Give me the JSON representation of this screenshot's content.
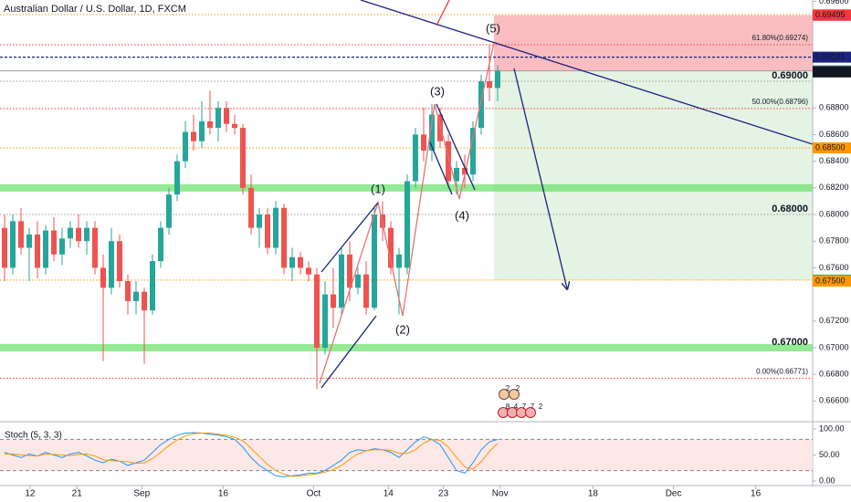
{
  "chart_data": {
    "type": "candlestick",
    "title": "Australian Dollar / U.S. Dollar, 1D, FXCM",
    "xlim": [
      -0.556,
      98.333
    ],
    "xticks": [
      {
        "value": 3.1,
        "label": "12"
      },
      {
        "value": 8.8,
        "label": "21"
      },
      {
        "value": 16.7,
        "label": "Sep"
      },
      {
        "value": 26.6,
        "label": "16"
      },
      {
        "value": 37.6,
        "label": "Oct"
      },
      {
        "value": 46.7,
        "label": "14"
      },
      {
        "value": 53.4,
        "label": "23"
      },
      {
        "value": 60.3,
        "label": "Nov"
      },
      {
        "value": 71.6,
        "label": "18"
      },
      {
        "value": 81.4,
        "label": "Dec"
      },
      {
        "value": 91.4,
        "label": "16"
      }
    ],
    "ylim": [
      0.66445,
      0.6961
    ],
    "yticks": [
      {
        "value": 0.696,
        "label": "0.69600"
      },
      {
        "value": 0.688,
        "label": "0.68800"
      },
      {
        "value": 0.686,
        "label": "0.68600"
      },
      {
        "value": 0.684,
        "label": "0.68400"
      },
      {
        "value": 0.682,
        "label": "0.68200"
      },
      {
        "value": 0.68,
        "label": "0.68000"
      },
      {
        "value": 0.678,
        "label": "0.67800"
      },
      {
        "value": 0.676,
        "label": "0.67600"
      },
      {
        "value": 0.672,
        "label": "0.67200"
      },
      {
        "value": 0.67,
        "label": "0.67000"
      },
      {
        "value": 0.668,
        "label": "0.66800"
      },
      {
        "value": 0.666,
        "label": "0.66600"
      }
    ],
    "up_color": "#26a69a",
    "down_color": "#ef5350",
    "open": [
      0.679,
      0.676,
      0.6795,
      0.6775,
      0.6785,
      0.676,
      0.6788,
      0.677,
      0.6782,
      0.679,
      0.678,
      0.679,
      0.676,
      0.6745,
      0.678,
      0.675,
      0.6735,
      0.6742,
      0.6728,
      0.6765,
      0.679,
      0.6815,
      0.684,
      0.6862,
      0.6855,
      0.687,
      0.6865,
      0.688,
      0.6868,
      0.6865,
      0.682,
      0.679,
      0.68,
      0.6775,
      0.6805,
      0.676,
      0.6768,
      0.676,
      0.6755,
      0.67,
      0.674,
      0.673,
      0.677,
      0.6745,
      0.6755,
      0.673,
      0.68,
      0.679,
      0.676,
      0.676,
      0.6825,
      0.686,
      0.6848,
      0.6875,
      0.6855,
      0.6825,
      0.6835,
      0.683,
      0.6865,
      0.69,
      0.6895
    ],
    "high": [
      0.68,
      0.68,
      0.6805,
      0.679,
      0.6795,
      0.6792,
      0.6798,
      0.679,
      0.6795,
      0.68,
      0.6795,
      0.6795,
      0.677,
      0.679,
      0.6785,
      0.6755,
      0.675,
      0.6745,
      0.677,
      0.6795,
      0.682,
      0.6845,
      0.687,
      0.6875,
      0.6885,
      0.6893,
      0.6885,
      0.6885,
      0.6875,
      0.6868,
      0.683,
      0.6805,
      0.6805,
      0.681,
      0.6808,
      0.6775,
      0.6772,
      0.6765,
      0.676,
      0.675,
      0.676,
      0.6775,
      0.678,
      0.676,
      0.6765,
      0.6805,
      0.681,
      0.6795,
      0.6775,
      0.683,
      0.6865,
      0.688,
      0.6883,
      0.688,
      0.686,
      0.684,
      0.6845,
      0.687,
      0.6905,
      0.6927,
      0.6912
    ],
    "low": [
      0.675,
      0.6755,
      0.677,
      0.675,
      0.6752,
      0.6755,
      0.6765,
      0.6762,
      0.6775,
      0.6775,
      0.677,
      0.6755,
      0.669,
      0.674,
      0.6745,
      0.6725,
      0.6725,
      0.6688,
      0.6725,
      0.676,
      0.6785,
      0.681,
      0.6835,
      0.6848,
      0.685,
      0.686,
      0.6855,
      0.6862,
      0.686,
      0.6815,
      0.6785,
      0.6775,
      0.677,
      0.677,
      0.6755,
      0.675,
      0.6755,
      0.675,
      0.6669,
      0.6695,
      0.6715,
      0.6725,
      0.6735,
      0.674,
      0.6725,
      0.6728,
      0.678,
      0.6755,
      0.6725,
      0.6755,
      0.682,
      0.684,
      0.684,
      0.685,
      0.682,
      0.6815,
      0.682,
      0.6825,
      0.686,
      0.6885,
      0.6885
    ],
    "close": [
      0.676,
      0.6795,
      0.6775,
      0.6785,
      0.676,
      0.6788,
      0.677,
      0.6782,
      0.679,
      0.678,
      0.679,
      0.676,
      0.6745,
      0.678,
      0.675,
      0.6735,
      0.6742,
      0.6728,
      0.6765,
      0.679,
      0.6815,
      0.684,
      0.6862,
      0.6855,
      0.687,
      0.6865,
      0.688,
      0.6868,
      0.6865,
      0.682,
      0.679,
      0.68,
      0.6775,
      0.6805,
      0.676,
      0.6768,
      0.676,
      0.6755,
      0.67,
      0.674,
      0.673,
      0.677,
      0.6745,
      0.6755,
      0.673,
      0.68,
      0.679,
      0.676,
      0.677,
      0.6825,
      0.686,
      0.6848,
      0.6875,
      0.6855,
      0.6825,
      0.6835,
      0.683,
      0.6865,
      0.69,
      0.6895,
      0.6908
    ],
    "zones": [
      {
        "from": 0.69078,
        "to": 0.69495,
        "color": "#f7a1a6"
      },
      {
        "from": 0.67508,
        "to": 0.69078,
        "color": "#d9eed9"
      }
    ],
    "lines": [
      {
        "value": 0.695,
        "color": "#ff9800",
        "style": "dotted"
      },
      {
        "value": 0.69274,
        "color": "#e53935",
        "style": "dotted",
        "label": "61.80%(0.69274)"
      },
      {
        "value": 0.69181,
        "color": "#1a237e",
        "style": "dashed"
      },
      {
        "value": 0.69078,
        "color": "#9e9e9e",
        "style": "solid"
      },
      {
        "value": 0.69,
        "color": "#9e9e9e",
        "style": "dotted",
        "label": "0.69000",
        "bold": true
      },
      {
        "value": 0.68796,
        "color": "#e53935",
        "style": "dotted",
        "label": "50.00%(0.68796)"
      },
      {
        "value": 0.685,
        "color": "#ff9800",
        "style": "dotted"
      },
      {
        "value": 0.682,
        "color": "#66e066",
        "style": "band"
      },
      {
        "value": 0.68,
        "color": "#9e9e9e",
        "style": "dotted",
        "label": "0.68000",
        "bold": true
      },
      {
        "value": 0.67508,
        "color": "#ff9800",
        "style": "dotted"
      },
      {
        "value": 0.67,
        "color": "#66e066",
        "style": "band",
        "label": "0.67000",
        "bold": true,
        "label_color": "#2e9e2e"
      },
      {
        "value": 0.66771,
        "color": "#e53935",
        "style": "dotted",
        "label": "0.00%(0.66771)"
      }
    ],
    "price_labels": [
      {
        "value": 0.695,
        "label": "0.69500",
        "color": "#ff9800"
      },
      {
        "value": 0.69495,
        "label": "0.69495",
        "color": "#f23645"
      },
      {
        "value": 0.69181,
        "label": "0.69181",
        "color": "#1a237e"
      },
      {
        "value": 0.69078,
        "label": "0.69078",
        "color": "#4a6b7a"
      },
      {
        "value": 0.6907,
        "label": "0.69070",
        "color": "#131722"
      },
      {
        "value": 0.685,
        "label": "0.68500",
        "color": "#ff9800"
      },
      {
        "value": 0.67508,
        "label": "0.67508",
        "color": "#4caf50"
      },
      {
        "value": 0.675,
        "label": "0.67500",
        "color": "#ff9800"
      }
    ],
    "waves": [
      "(1)",
      "(2)",
      "(3)",
      "(4)",
      "(5)"
    ],
    "events_top": [
      "2",
      "2"
    ],
    "events_bottom": [
      "8",
      "4",
      "7",
      "7",
      "2"
    ],
    "indicator": {
      "name": "Stoch (5, 3, 3)",
      "ylim": [
        -22.8,
        114
      ],
      "yticks": [
        {
          "value": 100,
          "label": "100.00"
        },
        {
          "value": 50,
          "label": "50.00"
        },
        {
          "value": 0,
          "label": "0.00"
        }
      ],
      "bands": [
        20,
        80
      ],
      "series": [
        {
          "color": "#2196f3",
          "values": [
            55,
            50,
            45,
            52,
            48,
            55,
            50,
            45,
            52,
            55,
            48,
            40,
            35,
            42,
            38,
            30,
            35,
            40,
            55,
            70,
            80,
            88,
            92,
            93,
            92,
            90,
            88,
            85,
            80,
            65,
            45,
            30,
            20,
            10,
            8,
            10,
            12,
            15,
            15,
            20,
            30,
            40,
            55,
            60,
            58,
            62,
            60,
            55,
            45,
            60,
            75,
            85,
            80,
            70,
            45,
            20,
            15,
            35,
            60,
            75,
            80
          ]
        },
        {
          "color": "#ff9800",
          "values": [
            52,
            52,
            50,
            49,
            48,
            52,
            51,
            50,
            49,
            51,
            52,
            48,
            41,
            39,
            38,
            37,
            34,
            35,
            43,
            55,
            68,
            79,
            87,
            91,
            92,
            92,
            90,
            88,
            84,
            77,
            63,
            47,
            32,
            20,
            13,
            9,
            10,
            12,
            14,
            17,
            22,
            30,
            42,
            52,
            58,
            60,
            60,
            59,
            53,
            53,
            60,
            73,
            80,
            78,
            65,
            45,
            27,
            23,
            37,
            57,
            72
          ]
        }
      ]
    }
  }
}
